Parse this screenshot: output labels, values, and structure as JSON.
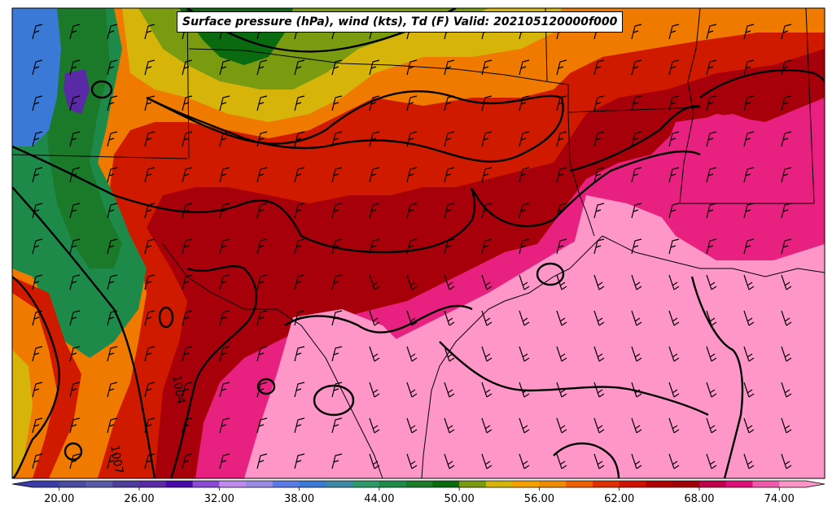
{
  "title": "Surface pressure (hPa), wind (kts), Td (F) Valid: 202105120000f000",
  "colorbar": {
    "colors": [
      "#3c3ca6",
      "#4a4aa0",
      "#5a5aa6",
      "#4e3e9c",
      "#5a2aa6",
      "#4a0aaa",
      "#8a4ad6",
      "#c08af0",
      "#9a8ae6",
      "#5a7ae6",
      "#3a7ad6",
      "#3a8aa6",
      "#2e9a6a",
      "#1e8a4a",
      "#1a7a2a",
      "#0a6a10",
      "#7a9a10",
      "#d6b40a",
      "#f5a000",
      "#f08a00",
      "#f06000",
      "#e03000",
      "#d01000",
      "#b00000",
      "#a0000a",
      "#c0004a",
      "#e0107a",
      "#f05aaa",
      "#ff96c8"
    ],
    "tick_labels": [
      "20.00",
      "26.00",
      "32.00",
      "38.00",
      "44.00",
      "50.00",
      "56.00",
      "62.00",
      "68.00",
      "74.00"
    ],
    "range": [
      18,
      76
    ]
  },
  "isobar_labels": [
    "1004",
    "1007"
  ],
  "colors": {
    "gulf": "#ff96c8",
    "coast_pink": "#e8207f",
    "dark_red": "#a00000",
    "red": "#d01a00",
    "orange": "#f07a00",
    "yellow": "#d6b40a",
    "green": "#1e8a4a",
    "dark_green": "#0a6a10",
    "olive": "#7a9a10"
  }
}
